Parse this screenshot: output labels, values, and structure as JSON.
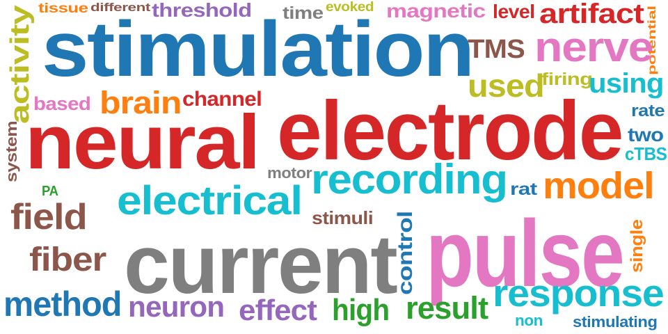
{
  "word_cloud": {
    "colors": {
      "red": "#d62728",
      "blue": "#1f77b4",
      "gray": "#7f7f7f",
      "pink": "#e377c2",
      "cyan": "#17becf",
      "olive": "#bcbd22",
      "orange": "#ff7f0e",
      "brown": "#8c564b",
      "purple": "#9467bd",
      "green": "#2ca02c"
    },
    "words": [
      {
        "text": "tissue",
        "color": "orange"
      },
      {
        "text": "different",
        "color": "brown"
      },
      {
        "text": "threshold",
        "color": "purple"
      },
      {
        "text": "time",
        "color": "gray"
      },
      {
        "text": "evoked",
        "color": "olive"
      },
      {
        "text": "magnetic",
        "color": "pink"
      },
      {
        "text": "level",
        "color": "red"
      },
      {
        "text": "artifact",
        "color": "red"
      },
      {
        "text": "potential",
        "color": "orange"
      },
      {
        "text": "activity",
        "color": "olive"
      },
      {
        "text": "stimulation",
        "color": "blue"
      },
      {
        "text": "TMS",
        "color": "brown"
      },
      {
        "text": "nerve",
        "color": "pink"
      },
      {
        "text": "used",
        "color": "olive"
      },
      {
        "text": "firing",
        "color": "olive"
      },
      {
        "text": "using",
        "color": "cyan"
      },
      {
        "text": "based",
        "color": "pink"
      },
      {
        "text": "brain",
        "color": "orange"
      },
      {
        "text": "channel",
        "color": "red"
      },
      {
        "text": "rate",
        "color": "blue"
      },
      {
        "text": "system",
        "color": "brown"
      },
      {
        "text": "neural",
        "color": "red"
      },
      {
        "text": "electrode",
        "color": "red"
      },
      {
        "text": "two",
        "color": "blue"
      },
      {
        "text": "cTBS",
        "color": "cyan"
      },
      {
        "text": "motor",
        "color": "gray"
      },
      {
        "text": "recording",
        "color": "cyan"
      },
      {
        "text": "rat",
        "color": "blue"
      },
      {
        "text": "model",
        "color": "orange"
      },
      {
        "text": "PA",
        "color": "green"
      },
      {
        "text": "electrical",
        "color": "cyan"
      },
      {
        "text": "field",
        "color": "brown"
      },
      {
        "text": "stimuli",
        "color": "brown"
      },
      {
        "text": "control",
        "color": "blue"
      },
      {
        "text": "current",
        "color": "gray"
      },
      {
        "text": "pulse",
        "color": "pink"
      },
      {
        "text": "single",
        "color": "orange"
      },
      {
        "text": "fiber",
        "color": "brown"
      },
      {
        "text": "response",
        "color": "cyan"
      },
      {
        "text": "method",
        "color": "blue"
      },
      {
        "text": "neuron",
        "color": "purple"
      },
      {
        "text": "effect",
        "color": "purple"
      },
      {
        "text": "high",
        "color": "green"
      },
      {
        "text": "result",
        "color": "green"
      },
      {
        "text": "non",
        "color": "cyan"
      },
      {
        "text": "stimulating",
        "color": "blue"
      }
    ]
  }
}
